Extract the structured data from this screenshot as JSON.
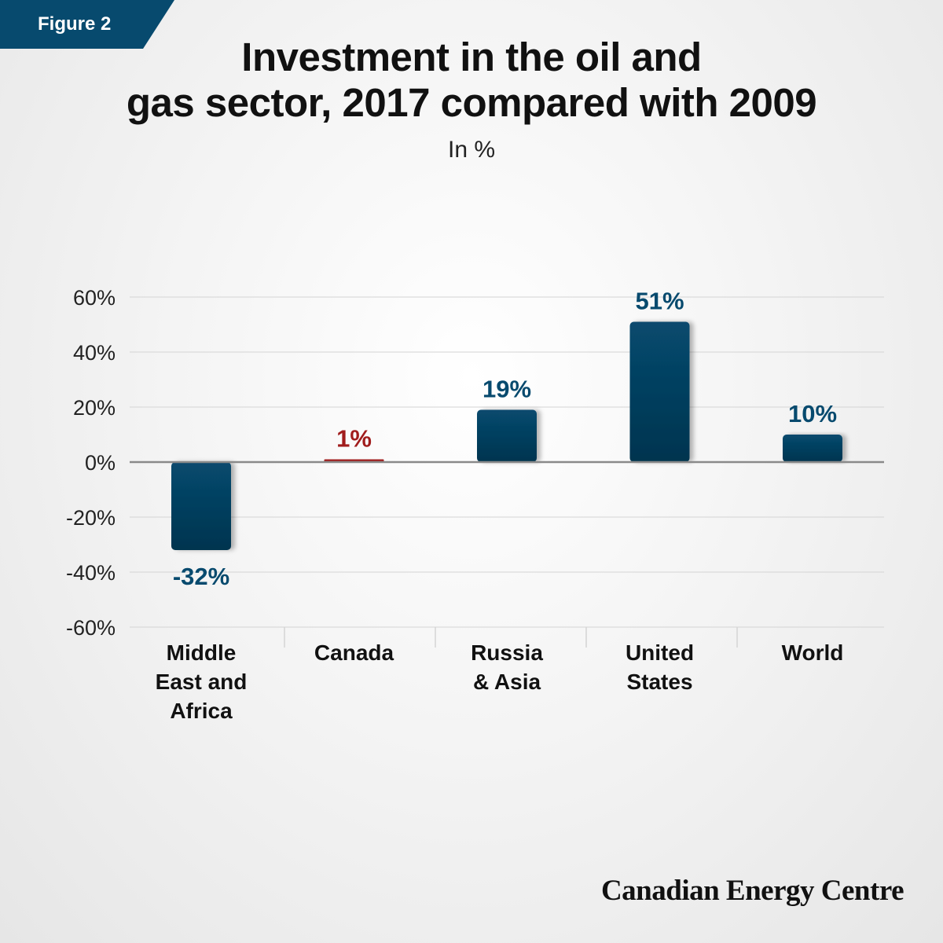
{
  "figure_tag": "Figure 2",
  "title_lines": [
    "Investment in the oil and",
    "gas sector,  2017 compared with 2009"
  ],
  "subtitle": "In %",
  "brand": "Canadian Energy Centre",
  "colors": {
    "primary_bar": "#074a6e",
    "highlight_bar": "#a01c1c",
    "gridline": "#d4d4d4",
    "zero_line": "#8a8a8a"
  },
  "chart_data": {
    "type": "bar",
    "title": "Investment in the oil and gas sector,  2017 compared with 2009",
    "subtitle": "In %",
    "categories": [
      [
        "Middle",
        "East and",
        "Africa"
      ],
      [
        "Canada"
      ],
      [
        "Russia",
        "& Asia"
      ],
      [
        "United",
        "States"
      ],
      [
        "World"
      ]
    ],
    "values": [
      -32,
      1,
      19,
      51,
      10
    ],
    "data_labels": [
      "-32%",
      "1%",
      "19%",
      "51%",
      "10%"
    ],
    "highlight_index": 1,
    "ylim": [
      -60,
      60
    ],
    "yticks": [
      60,
      40,
      20,
      0,
      -20,
      -40,
      -60
    ],
    "ytick_labels": [
      "60%",
      "40%",
      "20%",
      "0%",
      "-20%",
      "-40%",
      "-60%"
    ],
    "grid": true,
    "legend": "none"
  }
}
